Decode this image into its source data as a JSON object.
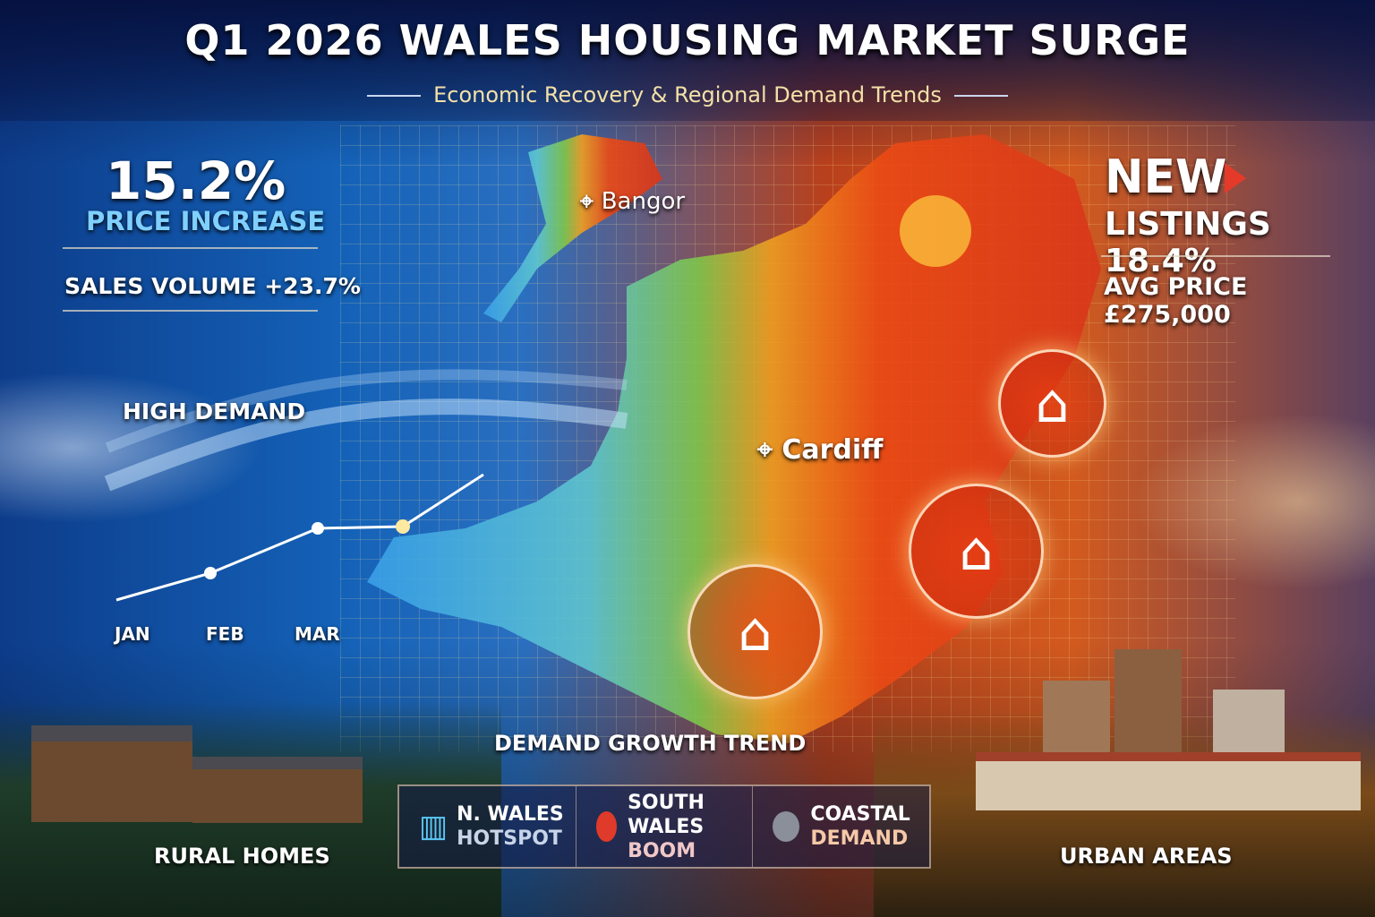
{
  "header": {
    "title": "Q1 2026 WALES HOUSING MARKET SURGE",
    "subtitle": "Economic Recovery & Regional Demand Trends"
  },
  "left_stats": {
    "headline_value": "15.2%",
    "headline_label": "PRICE INCREASE",
    "sales_volume": "SALES VOLUME +23.7%",
    "high_demand": "HIGH DEMAND"
  },
  "right_stats": {
    "new": "NEW",
    "listings": "LISTINGS 18.4%",
    "avg_price": "AVG PRICE £275,000"
  },
  "trend_chart": {
    "months": [
      "JAN",
      "FEB",
      "MAR"
    ]
  },
  "map": {
    "cities": [
      "Bangor",
      "Cardiff"
    ]
  },
  "demand_trend_label": "DEMAND GROWTH TREND",
  "legend": [
    {
      "line1": "N. WALES",
      "line2": "HOTSPOT",
      "icon": "bar-chart-icon",
      "color": "#5cc8f5"
    },
    {
      "line1": "SOUTH WALES",
      "line2": "BOOM",
      "icon": "red-pin-icon",
      "color": "#e03a2a"
    },
    {
      "line1": "COASTAL",
      "line2": "DEMAND",
      "icon": "grey-pin-icon",
      "color": "#8a8f9a"
    }
  ],
  "footer": {
    "rural": "RURAL HOMES",
    "urban": "URBAN AREAS"
  },
  "colors": {
    "cool": "#1462b8",
    "hot": "#d9441a",
    "accent_red": "#e53a2a"
  }
}
